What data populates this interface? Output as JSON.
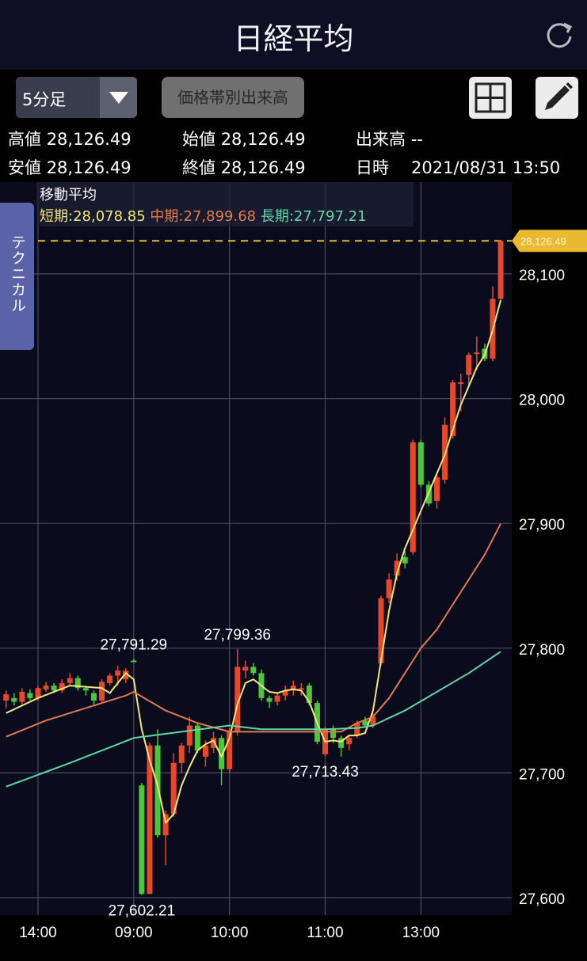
{
  "header": {
    "title": "日経平均",
    "refresh_icon": "refresh-icon"
  },
  "toolbar": {
    "interval_value": "5分足",
    "volume_profile_label": "価格帯別出来高",
    "layout_icon": "grid-layout-icon",
    "draw_icon": "pencil-icon"
  },
  "info": {
    "high_label": "高値",
    "high_value": "28,126.49",
    "open_label": "始値",
    "open_value": "28,126.49",
    "volume_label": "出来高",
    "volume_value": "--",
    "low_label": "安値",
    "low_value": "28,126.49",
    "close_label": "終値",
    "close_value": "28,126.49",
    "datetime_label": "日時",
    "datetime_value": "2021/08/31 13:50"
  },
  "technical_tab": "テクニカル",
  "moving_average": {
    "title": "移動平均",
    "short": "短期:28,078.85",
    "mid": "中期:27,899.68",
    "long": "長期:27,797.21"
  },
  "chart_data": {
    "type": "candlestick",
    "colors": {
      "up": "#e8482a",
      "down": "#4cc63a",
      "short_ma": "#f0e67a",
      "mid_ma": "#e07a50",
      "long_ma": "#5ed6a8",
      "current_price": "#e8b931",
      "background": "#0a0b1c",
      "grid": "#4a4b5c"
    },
    "ylim": [
      27580,
      28170
    ],
    "y_ticks": [
      {
        "value": 27600,
        "label": "27,600"
      },
      {
        "value": 27700,
        "label": "27,700"
      },
      {
        "value": 27800,
        "label": "27,800"
      },
      {
        "value": 27900,
        "label": "27,900"
      },
      {
        "value": 28000,
        "label": "28,000"
      },
      {
        "value": 28100,
        "label": "28,100"
      }
    ],
    "x_ticks": [
      {
        "index": 4,
        "label": "14:00"
      },
      {
        "index": 16,
        "label": "09:00"
      },
      {
        "index": 28,
        "label": "10:00"
      },
      {
        "index": 40,
        "label": "11:00"
      },
      {
        "index": 52,
        "label": "13:00"
      }
    ],
    "grid": true,
    "current_price": {
      "value": 28126.49,
      "label": "28,126.49"
    },
    "annotations": [
      {
        "index": 16,
        "value": 27791.29,
        "label": "27,791.29",
        "position": "above"
      },
      {
        "index": 29,
        "value": 27799.36,
        "label": "27,799.36",
        "position": "above"
      },
      {
        "index": 40,
        "value": 27713.43,
        "label": "27,713.43",
        "position": "below"
      },
      {
        "index": 17,
        "value": 27602.21,
        "label": "27,602.21",
        "position": "below"
      }
    ],
    "candles": [
      [
        27758,
        27766,
        27752,
        27763
      ],
      [
        27760,
        27764,
        27754,
        27757
      ],
      [
        27757,
        27768,
        27755,
        27765
      ],
      [
        27764,
        27767,
        27758,
        27760
      ],
      [
        27760,
        27770,
        27758,
        27768
      ],
      [
        27767,
        27773,
        27765,
        27770
      ],
      [
        27770,
        27772,
        27764,
        27766
      ],
      [
        27766,
        27775,
        27764,
        27772
      ],
      [
        27772,
        27780,
        27770,
        27776
      ],
      [
        27776,
        27778,
        27766,
        27768
      ],
      [
        27768,
        27770,
        27762,
        27766
      ],
      [
        27764,
        27766,
        27755,
        27758
      ],
      [
        27758,
        27775,
        27756,
        27773
      ],
      [
        27772,
        27780,
        27770,
        27778
      ],
      [
        27778,
        27786,
        27770,
        27782
      ],
      [
        27775,
        27784,
        27772,
        27782
      ],
      [
        27790,
        27791.29,
        27789,
        27789.5
      ],
      [
        27690,
        27692,
        27602.21,
        27603
      ],
      [
        27603,
        27724,
        27603,
        27722
      ],
      [
        27722,
        27735,
        27648,
        27650
      ],
      [
        27650,
        27670,
        27626,
        27667
      ],
      [
        27667,
        27716,
        27665,
        27708
      ],
      [
        27708,
        27724,
        27700,
        27722
      ],
      [
        27722,
        27745,
        27716,
        27738
      ],
      [
        27738,
        27740,
        27716,
        27718
      ],
      [
        27713,
        27726,
        27705,
        27722
      ],
      [
        27720,
        27733,
        27716,
        27728
      ],
      [
        27728,
        27730,
        27690,
        27703
      ],
      [
        27703,
        27736,
        27700,
        27733
      ],
      [
        27733,
        27799.36,
        27730,
        27785
      ],
      [
        27782,
        27790,
        27776,
        27785
      ],
      [
        27785,
        27788,
        27778,
        27780
      ],
      [
        27780,
        27783,
        27758,
        27760
      ],
      [
        27760,
        27762,
        27752,
        27757
      ],
      [
        27757,
        27764,
        27754,
        27762
      ],
      [
        27762,
        27770,
        27758,
        27766
      ],
      [
        27766,
        27774,
        27762,
        27770
      ],
      [
        27767,
        27772,
        27762,
        27768
      ],
      [
        27770,
        27772,
        27754,
        27756
      ],
      [
        27756,
        27758,
        27723,
        27725
      ],
      [
        27715,
        27737,
        27713.43,
        27735
      ],
      [
        27735,
        27738,
        27724,
        27728
      ],
      [
        27728,
        27730,
        27713,
        27720
      ],
      [
        27723,
        27730,
        27718,
        27728
      ],
      [
        27730,
        27742,
        27728,
        27740
      ],
      [
        27742,
        27745,
        27736,
        27738
      ],
      [
        27738,
        27748,
        27736,
        27745
      ],
      [
        27788,
        27842,
        27786,
        27840
      ],
      [
        27840,
        27860,
        27836,
        27855
      ],
      [
        27858,
        27876,
        27854,
        27870
      ],
      [
        27873,
        27878,
        27864,
        27868
      ],
      [
        27877,
        27967,
        27875,
        27965
      ],
      [
        27965,
        27967,
        27929,
        27931
      ],
      [
        27931,
        27934,
        27914,
        27916
      ],
      [
        27918,
        27939,
        27912,
        27937
      ],
      [
        27935,
        27985,
        27932,
        27979
      ],
      [
        27970,
        28015,
        27968,
        28013
      ],
      [
        28012,
        28020,
        27990,
        28013
      ],
      [
        28019,
        28037,
        28010,
        28035
      ],
      [
        28036,
        28050,
        28023,
        28037
      ],
      [
        28040,
        28044,
        28030,
        28032
      ],
      [
        28032,
        28090,
        28030,
        28080
      ],
      [
        28080,
        28126.49,
        28078,
        28126.49
      ]
    ],
    "series": [
      {
        "name": "短期",
        "points": [
          [
            0,
            27748
          ],
          [
            4,
            27760
          ],
          [
            8,
            27770
          ],
          [
            12,
            27768
          ],
          [
            13,
            27764
          ],
          [
            15,
            27780
          ],
          [
            16,
            27775
          ],
          [
            17,
            27735
          ],
          [
            18,
            27710
          ],
          [
            19,
            27690
          ],
          [
            20,
            27660
          ],
          [
            21,
            27667
          ],
          [
            22,
            27690
          ],
          [
            23,
            27705
          ],
          [
            24,
            27718
          ],
          [
            25,
            27723
          ],
          [
            26,
            27726
          ],
          [
            27,
            27713
          ],
          [
            28,
            27728
          ],
          [
            29,
            27755
          ],
          [
            30,
            27772
          ],
          [
            31,
            27775
          ],
          [
            32,
            27770
          ],
          [
            33,
            27765
          ],
          [
            34,
            27764
          ],
          [
            35,
            27766
          ],
          [
            36,
            27767
          ],
          [
            37,
            27766
          ],
          [
            38,
            27757
          ],
          [
            39,
            27740
          ],
          [
            40,
            27725
          ],
          [
            41,
            27726
          ],
          [
            42,
            27725
          ],
          [
            43,
            27730
          ],
          [
            44,
            27730
          ],
          [
            45,
            27732
          ],
          [
            46,
            27750
          ],
          [
            47,
            27790
          ],
          [
            48,
            27830
          ],
          [
            49,
            27860
          ],
          [
            50,
            27880
          ],
          [
            51,
            27895
          ],
          [
            52,
            27910
          ],
          [
            53,
            27925
          ],
          [
            54,
            27940
          ],
          [
            55,
            27955
          ],
          [
            56,
            27975
          ],
          [
            57,
            27995
          ],
          [
            58,
            28010
          ],
          [
            59,
            28025
          ],
          [
            60,
            28035
          ],
          [
            61,
            28055
          ],
          [
            62,
            28078.85
          ]
        ]
      },
      {
        "name": "中期",
        "points": [
          [
            0,
            27729
          ],
          [
            5,
            27742
          ],
          [
            10,
            27752
          ],
          [
            15,
            27762
          ],
          [
            16,
            27765
          ],
          [
            20,
            27750
          ],
          [
            24,
            27740
          ],
          [
            28,
            27733
          ],
          [
            36,
            27733
          ],
          [
            42,
            27733
          ],
          [
            44,
            27740
          ],
          [
            46,
            27745
          ],
          [
            48,
            27760
          ],
          [
            50,
            27780
          ],
          [
            52,
            27800
          ],
          [
            54,
            27815
          ],
          [
            56,
            27835
          ],
          [
            58,
            27855
          ],
          [
            60,
            27875
          ],
          [
            62,
            27899.68
          ]
        ]
      },
      {
        "name": "長期",
        "points": [
          [
            0,
            27689
          ],
          [
            8,
            27708
          ],
          [
            16,
            27728
          ],
          [
            22,
            27733
          ],
          [
            28,
            27738
          ],
          [
            32,
            27735
          ],
          [
            40,
            27735
          ],
          [
            44,
            27736
          ],
          [
            46,
            27738
          ],
          [
            50,
            27750
          ],
          [
            54,
            27765
          ],
          [
            58,
            27780
          ],
          [
            62,
            27797.21
          ]
        ]
      }
    ]
  }
}
